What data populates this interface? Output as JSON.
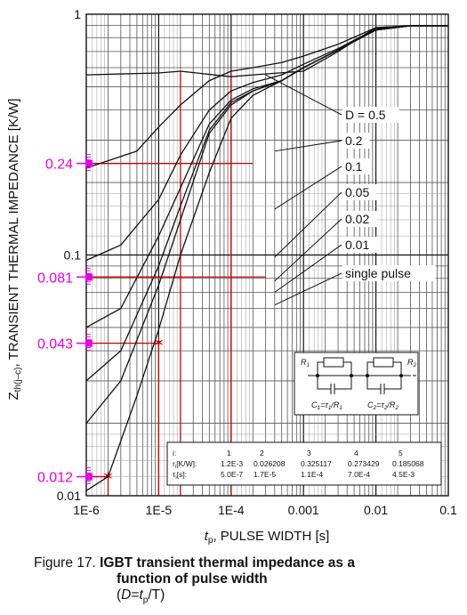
{
  "chart_data": {
    "type": "line",
    "x_scale": "log",
    "y_scale": "log",
    "xlim": [
      1e-06,
      0.1
    ],
    "ylim": [
      0.01,
      1
    ],
    "x_ticks": [
      "1E-6",
      "1E-5",
      "1E-4",
      "0.001",
      "0.01",
      "0.1"
    ],
    "y_ticks": [
      "0.01",
      "0.1",
      "1"
    ],
    "xlabel": "t",
    "xlabel_sub": "p",
    "xlabel_rest": ", PULSE WIDTH [s]",
    "ylabel": "Z",
    "ylabel_sub": "th(j–c)",
    "ylabel_rest": ", TRANSIENT THERMAL IMPEDANCE [K/W]",
    "grid": true,
    "series": [
      {
        "name": "D = 0.5",
        "points": [
          [
            1e-06,
            0.56
          ],
          [
            1e-05,
            0.57
          ],
          [
            2e-05,
            0.58
          ],
          [
            0.0001,
            0.55
          ],
          [
            0.0002,
            0.56
          ],
          [
            0.001,
            0.58
          ],
          [
            0.003,
            0.7
          ],
          [
            0.01,
            0.88
          ],
          [
            0.03,
            0.895
          ],
          [
            0.1,
            0.895
          ]
        ]
      },
      {
        "name": "0.2",
        "points": [
          [
            1e-06,
            0.23
          ],
          [
            5e-06,
            0.27
          ],
          [
            1e-05,
            0.34
          ],
          [
            2e-05,
            0.42
          ],
          [
            5e-05,
            0.53
          ],
          [
            0.0001,
            0.58
          ],
          [
            0.0002,
            0.6
          ],
          [
            0.0005,
            0.63
          ],
          [
            0.001,
            0.67
          ],
          [
            0.003,
            0.75
          ],
          [
            0.01,
            0.88
          ],
          [
            0.03,
            0.895
          ],
          [
            0.1,
            0.895
          ]
        ]
      },
      {
        "name": "0.1",
        "points": [
          [
            1e-06,
            0.095
          ],
          [
            3e-06,
            0.11
          ],
          [
            1e-05,
            0.17
          ],
          [
            2e-05,
            0.26
          ],
          [
            5e-05,
            0.4
          ],
          [
            0.0001,
            0.48
          ],
          [
            0.0002,
            0.52
          ],
          [
            0.0005,
            0.56
          ],
          [
            0.001,
            0.62
          ],
          [
            0.003,
            0.72
          ],
          [
            0.01,
            0.87
          ],
          [
            0.03,
            0.895
          ],
          [
            0.1,
            0.895
          ]
        ]
      },
      {
        "name": "0.05",
        "points": [
          [
            1e-06,
            0.05
          ],
          [
            3e-06,
            0.06
          ],
          [
            1e-05,
            0.12
          ],
          [
            2e-05,
            0.19
          ],
          [
            5e-05,
            0.35
          ],
          [
            0.0001,
            0.44
          ],
          [
            0.0002,
            0.49
          ],
          [
            0.0005,
            0.53
          ],
          [
            0.001,
            0.6
          ],
          [
            0.003,
            0.71
          ],
          [
            0.01,
            0.86
          ],
          [
            0.03,
            0.895
          ],
          [
            0.1,
            0.895
          ]
        ]
      },
      {
        "name": "0.02",
        "points": [
          [
            1e-06,
            0.03
          ],
          [
            3e-06,
            0.04
          ],
          [
            1e-05,
            0.09
          ],
          [
            2e-05,
            0.16
          ],
          [
            5e-05,
            0.33
          ],
          [
            0.0001,
            0.43
          ],
          [
            0.0002,
            0.48
          ],
          [
            0.0005,
            0.53
          ],
          [
            0.001,
            0.6
          ],
          [
            0.003,
            0.71
          ],
          [
            0.01,
            0.86
          ],
          [
            0.03,
            0.895
          ],
          [
            0.1,
            0.895
          ]
        ]
      },
      {
        "name": "0.01",
        "points": [
          [
            1e-06,
            0.02
          ],
          [
            3e-06,
            0.03
          ],
          [
            1e-05,
            0.075
          ],
          [
            2e-05,
            0.14
          ],
          [
            5e-05,
            0.32
          ],
          [
            0.0001,
            0.42
          ],
          [
            0.0002,
            0.48
          ],
          [
            0.0005,
            0.53
          ],
          [
            0.001,
            0.6
          ],
          [
            0.003,
            0.71
          ],
          [
            0.01,
            0.86
          ],
          [
            0.03,
            0.895
          ],
          [
            0.1,
            0.895
          ]
        ]
      },
      {
        "name": "single pulse",
        "points": [
          [
            1e-06,
            0.0105
          ],
          [
            2e-06,
            0.012
          ],
          [
            5e-06,
            0.026
          ],
          [
            1e-05,
            0.049
          ],
          [
            2e-05,
            0.1
          ],
          [
            5e-05,
            0.22
          ],
          [
            0.0001,
            0.37
          ],
          [
            0.0002,
            0.46
          ],
          [
            0.0005,
            0.53
          ],
          [
            0.001,
            0.6
          ],
          [
            0.003,
            0.71
          ],
          [
            0.01,
            0.86
          ],
          [
            0.03,
            0.895
          ],
          [
            0.1,
            0.895
          ]
        ]
      }
    ],
    "annotations": {
      "highlight_values": [
        "0.24",
        "0.081",
        "0.043",
        "0.012"
      ],
      "highlight_color": "#e600e6",
      "guide_color": "#cc0000"
    },
    "rc_network": {
      "labels": [
        "R",
        "1",
        "R",
        "2",
        "C",
        "1",
        "=τ",
        "1",
        "/R",
        "1",
        "C",
        "2",
        "=τ",
        "2",
        "/R",
        "2"
      ]
    },
    "table": {
      "header": [
        "i:",
        "1",
        "2",
        "3",
        "4",
        "5"
      ],
      "rows": [
        [
          "r",
          "i",
          "[K/W]:",
          "1.2E-3",
          "0.026208",
          "0.325117",
          "0.273429",
          "0.185068"
        ],
        [
          "τ",
          "i",
          "[s]:",
          "5.0E-7",
          "1.7E-5",
          "1.1E-4",
          "7.0E-4",
          "4.5E-3"
        ]
      ]
    }
  },
  "caption": {
    "figure": "Figure 17.",
    "title": "IGBT transient thermal impedance as a",
    "title2": "function of pulse width",
    "note_open": "(",
    "note_d": "D",
    "note_eq": "=",
    "note_t": "t",
    "note_sub": "p",
    "note_close": "/T)"
  }
}
